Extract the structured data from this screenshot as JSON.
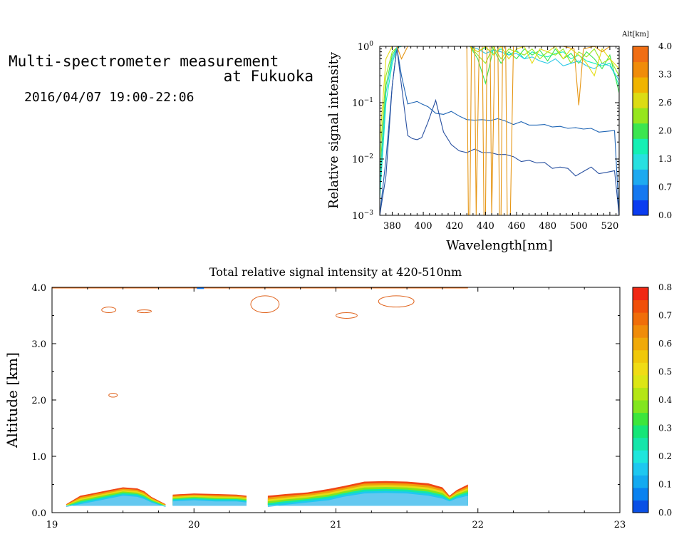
{
  "header": {
    "title_line1": "Multi-spectrometer measurement",
    "title_line2": "at Fukuoka",
    "subtitle": "2016/04/07 19:00-22:06"
  },
  "chart_data": [
    {
      "type": "line",
      "xlabel": "Wavelength[nm]",
      "ylabel": "Relative signal intensity",
      "xlim": [
        372,
        526
      ],
      "ylim": [
        0.001,
        1
      ],
      "yscale": "log",
      "x_ticks": [
        "380",
        "400",
        "420",
        "440",
        "460",
        "480",
        "500",
        "520"
      ],
      "y_ticks": [
        {
          "base": "10",
          "exp": "0"
        },
        {
          "base": "10",
          "exp": "−1"
        },
        {
          "base": "10",
          "exp": "−2"
        },
        {
          "base": "10",
          "exp": "−3"
        }
      ],
      "colorbar": {
        "label": "Alt[km]",
        "ticks": [
          "4.0",
          "3.3",
          "2.6",
          "2.0",
          "1.3",
          "0.7",
          "0.0"
        ],
        "colors": [
          "#0a3cf0",
          "#1478f0",
          "#1eaaf0",
          "#28e0e0",
          "#14f0b4",
          "#3ce650",
          "#96e61e",
          "#dcdc14",
          "#f0b400",
          "#f08c0a",
          "#f06e14"
        ]
      },
      "series": [
        {
          "color": "#1e64b4",
          "x": [
            372,
            376,
            380,
            383,
            386,
            390,
            393,
            396,
            399,
            403,
            408,
            413,
            418,
            423,
            428,
            433,
            438,
            443,
            448,
            453,
            458,
            463,
            468,
            473,
            478,
            483,
            488,
            493,
            498,
            503,
            508,
            513,
            518,
            523,
            526
          ],
          "y": [
            0.001,
            0.01,
            0.2,
            0.95,
            0.3,
            0.095,
            0.1,
            0.105,
            0.095,
            0.085,
            0.065,
            0.062,
            0.07,
            0.058,
            0.05,
            0.049,
            0.05,
            0.048,
            0.052,
            0.047,
            0.041,
            0.046,
            0.04,
            0.04,
            0.041,
            0.037,
            0.038,
            0.035,
            0.036,
            0.034,
            0.035,
            0.03,
            0.031,
            0.032,
            0.001
          ]
        },
        {
          "color": "#2850a0",
          "x": [
            372,
            376,
            380,
            383,
            386,
            390,
            393,
            396,
            399,
            403,
            408,
            413,
            418,
            423,
            428,
            433,
            438,
            443,
            448,
            453,
            458,
            463,
            468,
            473,
            478,
            483,
            488,
            493,
            498,
            503,
            508,
            513,
            518,
            523,
            526
          ],
          "y": [
            0.001,
            0.005,
            0.2,
            0.95,
            0.2,
            0.026,
            0.023,
            0.022,
            0.024,
            0.045,
            0.11,
            0.03,
            0.018,
            0.014,
            0.013,
            0.015,
            0.013,
            0.013,
            0.012,
            0.012,
            0.011,
            0.009,
            0.0095,
            0.0085,
            0.0087,
            0.0068,
            0.0072,
            0.0068,
            0.005,
            0.006,
            0.0072,
            0.0055,
            0.0058,
            0.0062,
            0.001
          ]
        },
        {
          "color": "#14f0b4",
          "x": [
            372,
            376,
            380,
            383,
            386,
            390,
            395,
            400,
            405,
            410,
            415,
            420,
            425,
            430,
            435,
            440,
            445,
            450,
            455,
            460,
            465,
            470,
            475,
            480,
            485,
            490,
            495,
            500,
            505,
            510,
            515,
            520,
            526
          ],
          "y": [
            0.002,
            0.1,
            0.5,
            0.95,
            1,
            1,
            1,
            1,
            1,
            1,
            1,
            1,
            1,
            1,
            0.8,
            0.95,
            0.75,
            0.9,
            0.7,
            0.85,
            0.6,
            0.8,
            0.7,
            0.65,
            0.75,
            0.8,
            0.6,
            0.7,
            0.55,
            0.5,
            0.45,
            0.5,
            0.2
          ]
        },
        {
          "color": "#3ce650",
          "x": [
            372,
            376,
            380,
            383,
            386,
            390,
            395,
            400,
            405,
            410,
            415,
            420,
            425,
            430,
            435,
            440,
            445,
            450,
            455,
            460,
            465,
            470,
            475,
            480,
            485,
            490,
            495,
            500,
            505,
            510,
            515,
            520,
            526
          ],
          "y": [
            0.005,
            0.2,
            0.7,
            0.95,
            1,
            1,
            1,
            1,
            1,
            1,
            1,
            1,
            1,
            1,
            0.6,
            0.22,
            0.9,
            0.5,
            0.8,
            0.6,
            0.9,
            0.7,
            0.85,
            0.55,
            0.9,
            0.6,
            0.75,
            0.5,
            0.8,
            0.6,
            0.4,
            0.7,
            0.15
          ]
        },
        {
          "color": "#96e61e",
          "x": [
            372,
            376,
            380,
            383,
            386,
            390,
            395,
            400,
            405,
            410,
            415,
            420,
            425,
            430,
            435,
            440,
            445,
            450,
            455,
            460,
            465,
            470,
            475,
            480,
            485,
            490,
            495,
            500,
            505,
            510,
            515,
            520,
            526
          ],
          "y": [
            0.01,
            0.3,
            0.8,
            0.95,
            1,
            1,
            1,
            1,
            1,
            1,
            1,
            1,
            1,
            1,
            0.7,
            0.5,
            1,
            0.6,
            0.9,
            0.8,
            0.7,
            0.9,
            0.6,
            0.8,
            0.7,
            0.9,
            0.5,
            0.8,
            0.65,
            0.9,
            0.5,
            0.6,
            0.3
          ]
        },
        {
          "color": "#28c8e6",
          "x": [
            372,
            376,
            380,
            383,
            386,
            390,
            395,
            400,
            405,
            410,
            415,
            420,
            425,
            430,
            435,
            440,
            445,
            450,
            455,
            460,
            465,
            470,
            475,
            480,
            485,
            490,
            495,
            500,
            505,
            510,
            515,
            520,
            526
          ],
          "y": [
            0.003,
            0.15,
            0.6,
            0.95,
            1,
            1,
            1,
            1,
            1,
            1,
            1,
            1,
            1,
            1,
            0.9,
            0.75,
            0.85,
            0.8,
            0.7,
            0.75,
            0.6,
            0.65,
            0.55,
            0.5,
            0.6,
            0.45,
            0.5,
            0.55,
            0.45,
            0.4,
            0.5,
            0.45,
            0.25
          ]
        },
        {
          "color": "#e6dc14",
          "x": [
            372,
            376,
            380,
            383,
            386,
            390,
            395,
            400,
            405,
            410,
            415,
            420,
            425,
            430,
            435,
            440,
            445,
            450,
            455,
            460,
            465,
            470,
            475,
            480,
            485,
            490,
            495,
            500,
            505,
            510,
            515,
            520,
            526
          ],
          "y": [
            0.02,
            0.6,
            1,
            1,
            1,
            1,
            1,
            1,
            1,
            1,
            1,
            1,
            1,
            1,
            0.8,
            1,
            0.7,
            1,
            0.6,
            0.9,
            1,
            0.5,
            0.9,
            0.8,
            1,
            0.6,
            0.9,
            0.7,
            0.5,
            0.3,
            0.9,
            0.6,
            0.4
          ]
        },
        {
          "color": "#e69614",
          "x": [
            372,
            380,
            383,
            386,
            390,
            395,
            400,
            405,
            410,
            415,
            420,
            425,
            428,
            429,
            430,
            431,
            433,
            434,
            436,
            438,
            439,
            440,
            441,
            443,
            444,
            446,
            448,
            449,
            450,
            451,
            453,
            454,
            456,
            458,
            460,
            470,
            480,
            490,
            497,
            500,
            503,
            510,
            515,
            520,
            526
          ],
          "y": [
            1,
            1,
            1,
            0.6,
            1,
            1,
            1,
            1,
            1,
            1,
            1,
            1,
            1,
            0.001,
            0.001,
            1,
            1,
            0.001,
            1,
            1,
            0.001,
            0.001,
            1,
            1,
            0.001,
            1,
            1,
            0.001,
            0.001,
            1,
            1,
            0.001,
            0.001,
            1,
            1,
            1,
            1,
            1,
            0.9,
            0.09,
            0.9,
            1,
            0.8,
            1,
            1
          ]
        }
      ]
    },
    {
      "type": "heatmap",
      "title": "Total relative signal intensity at 420-510nm",
      "ylabel": "Altitude [km]",
      "xlim": [
        19,
        23
      ],
      "ylim": [
        0,
        4
      ],
      "x_ticks": [
        "19",
        "20",
        "21",
        "22",
        "23"
      ],
      "y_ticks": [
        "0.0",
        "1.0",
        "2.0",
        "3.0",
        "4.0"
      ],
      "colorbar": {
        "ticks": [
          "0.8",
          "0.7",
          "0.6",
          "0.5",
          "0.4",
          "0.3",
          "0.2",
          "0.1",
          "0.0"
        ],
        "range": [
          0,
          0.8
        ],
        "colors": [
          "#0a50e6",
          "#0a82f0",
          "#14aaf0",
          "#1ec8f0",
          "#1ee6dc",
          "#14e6aa",
          "#14e678",
          "#3ce63c",
          "#82e61e",
          "#b4e614",
          "#dce614",
          "#f0dc14",
          "#f0c80a",
          "#f0aa0a",
          "#f08c0a",
          "#f06e0a",
          "#f0500a",
          "#f02814"
        ]
      },
      "segments": [
        {
          "x": [
            19.1,
            19.2,
            19.3,
            19.4,
            19.5,
            19.6,
            19.65,
            19.7,
            19.8
          ],
          "band_top_km": [
            0.15,
            0.3,
            0.35,
            0.4,
            0.45,
            0.43,
            0.38,
            0.28,
            0.15
          ],
          "core_top_km": [
            0.1,
            0.15,
            0.2,
            0.25,
            0.3,
            0.28,
            0.24,
            0.18,
            0.1
          ]
        },
        {
          "x": [
            19.85,
            20.0,
            20.15,
            20.3,
            20.37
          ],
          "band_top_km": [
            0.32,
            0.34,
            0.33,
            0.32,
            0.3
          ],
          "core_top_km": [
            0.2,
            0.22,
            0.2,
            0.2,
            0.18
          ]
        },
        {
          "x": [
            20.52,
            20.65,
            20.8,
            20.95,
            21.05,
            21.2,
            21.35,
            21.5,
            21.65,
            21.75,
            21.8,
            21.85,
            21.93
          ],
          "band_top_km": [
            0.3,
            0.33,
            0.36,
            0.42,
            0.47,
            0.55,
            0.56,
            0.55,
            0.52,
            0.45,
            0.3,
            0.4,
            0.5
          ],
          "core_top_km": [
            0.1,
            0.14,
            0.18,
            0.22,
            0.28,
            0.34,
            0.35,
            0.34,
            0.3,
            0.25,
            0.2,
            0.25,
            0.3
          ]
        }
      ],
      "contours": [
        {
          "x": [
            19.35,
            19.45
          ],
          "y": [
            3.55,
            3.65
          ]
        },
        {
          "x": [
            19.6,
            19.7
          ],
          "y": [
            3.55,
            3.6
          ]
        },
        {
          "x": [
            20.4,
            20.6
          ],
          "y": [
            3.55,
            3.85
          ]
        },
        {
          "x": [
            21.3,
            21.55
          ],
          "y": [
            3.65,
            3.85
          ]
        },
        {
          "x": [
            19.4,
            19.46
          ],
          "y": [
            2.05,
            2.12
          ]
        },
        {
          "x": [
            21.0,
            21.15
          ],
          "y": [
            3.45,
            3.55
          ]
        }
      ]
    }
  ]
}
